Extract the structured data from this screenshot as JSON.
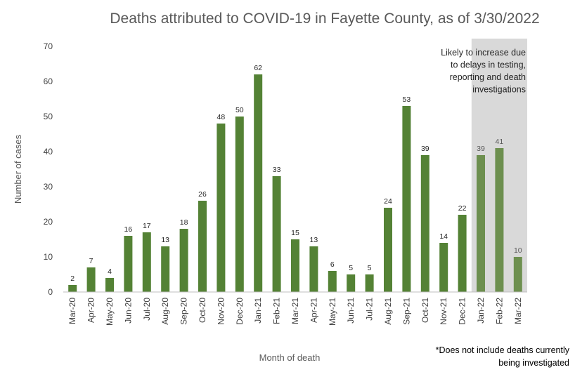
{
  "chart_data": {
    "type": "bar",
    "title": "Deaths attributed to COVID-19 in Fayette County, as of 3/30/2022",
    "xlabel": "Month of death",
    "ylabel": "Number of cases",
    "ylim": [
      0,
      70
    ],
    "yticks": [
      0,
      10,
      20,
      30,
      40,
      50,
      60,
      70
    ],
    "grid": false,
    "categories": [
      "Mar-20",
      "Apr-20",
      "May-20",
      "Jun-20",
      "Jul-20",
      "Aug-20",
      "Sep-20",
      "Oct-20",
      "Nov-20",
      "Dec-20",
      "Jan-21",
      "Feb-21",
      "Mar-21",
      "Apr-21",
      "May-21",
      "Jun-21",
      "Jul-21",
      "Aug-21",
      "Sep-21",
      "Oct-21",
      "Nov-21",
      "Dec-21",
      "Jan-22",
      "Feb-22",
      "Mar-22"
    ],
    "values": [
      2,
      7,
      4,
      16,
      17,
      13,
      18,
      26,
      48,
      50,
      62,
      33,
      15,
      13,
      6,
      5,
      5,
      24,
      53,
      39,
      14,
      22,
      39,
      41,
      10
    ],
    "shaded_region": {
      "categories": [
        "Jan-22",
        "Feb-22",
        "Mar-22"
      ],
      "annotation_lines": [
        "Likely to increase due",
        "to delays in testing,",
        "reporting and death",
        "investigations"
      ]
    },
    "footnote_lines": [
      "*Does not include deaths currently",
      "being investigated"
    ],
    "colors": {
      "bar": "#548235",
      "bar_shaded": "#6d8f4f",
      "shade": "#d9d9d9",
      "axis": "#bfbfbf"
    }
  }
}
